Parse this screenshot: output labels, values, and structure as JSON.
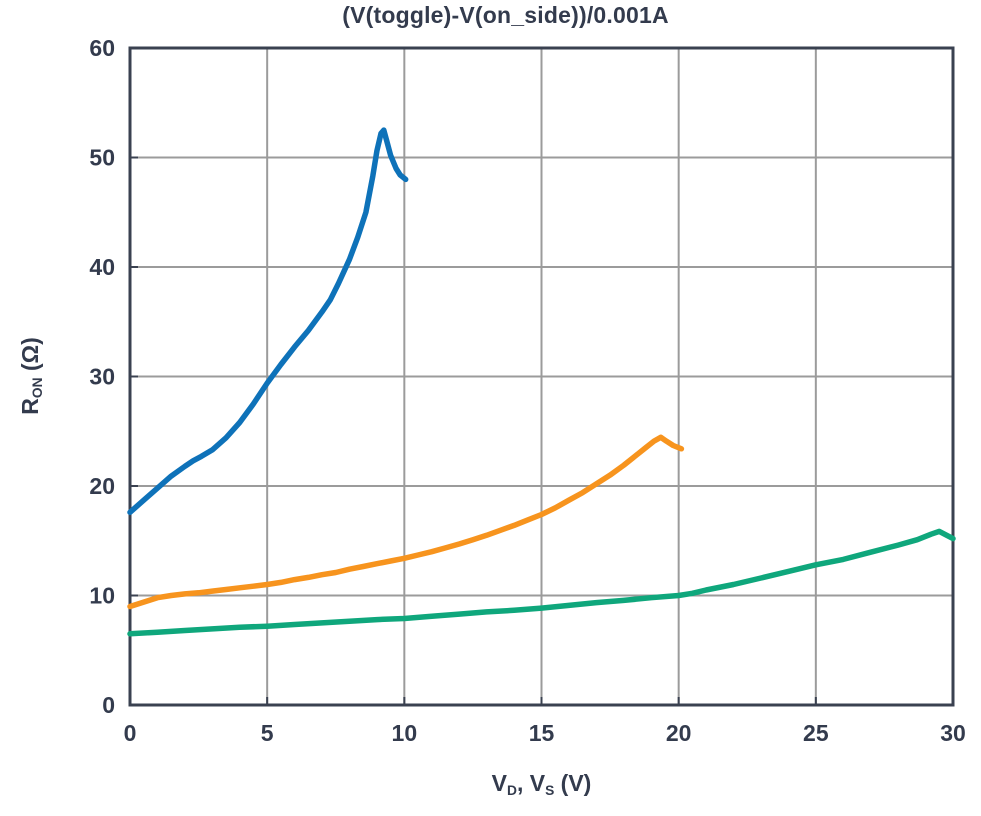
{
  "title": "(V(toggle)-V(on_side))/0.001A",
  "axes": {
    "ylabel_main": "R",
    "ylabel_sub": "ON",
    "ylabel_rest": " (Ω)",
    "xlabel_v1": "V",
    "xlabel_sub1": "D",
    "xlabel_mid": ", V",
    "xlabel_sub2": "S",
    "xlabel_rest": " (V)"
  },
  "chart_data": {
    "type": "line",
    "title": "(V(toggle)-V(on_side))/0.001A",
    "xlabel": "VD, VS (V)",
    "ylabel": "RON (Ω)",
    "xlim": [
      0,
      30
    ],
    "ylim": [
      0,
      60
    ],
    "grid": true,
    "legend_position": "none",
    "x_tick_values": [
      0,
      5,
      10,
      15,
      20,
      25,
      30
    ],
    "x_tick_labels": [
      "0",
      "5",
      "10",
      "15",
      "20",
      "25",
      "30"
    ],
    "y_tick_values": [
      0,
      10,
      20,
      30,
      40,
      50,
      60
    ],
    "y_tick_labels": [
      "0",
      "10",
      "20",
      "30",
      "40",
      "50",
      "60"
    ],
    "x_gridlines": [
      5,
      10,
      15,
      20,
      25
    ],
    "y_gridlines": [
      10,
      20,
      30,
      40,
      50
    ],
    "colors": {
      "frame": "#3A4150",
      "grid": "#9B9B9B",
      "text": "#333B4D"
    },
    "series": [
      {
        "name": "blue-curve",
        "color": "#0E72B9",
        "points": [
          [
            0,
            17.6
          ],
          [
            0.5,
            18.7
          ],
          [
            1,
            19.8
          ],
          [
            1.5,
            20.9
          ],
          [
            2,
            21.8
          ],
          [
            2.3,
            22.3
          ],
          [
            2.6,
            22.7
          ],
          [
            3,
            23.3
          ],
          [
            3.5,
            24.4
          ],
          [
            4,
            25.8
          ],
          [
            4.5,
            27.5
          ],
          [
            5,
            29.4
          ],
          [
            5.5,
            31.1
          ],
          [
            6,
            32.7
          ],
          [
            6.5,
            34.2
          ],
          [
            7,
            35.9
          ],
          [
            7.3,
            37.0
          ],
          [
            7.6,
            38.5
          ],
          [
            8,
            40.7
          ],
          [
            8.3,
            42.7
          ],
          [
            8.6,
            45.0
          ],
          [
            8.85,
            48.3
          ],
          [
            9.0,
            50.6
          ],
          [
            9.15,
            52.2
          ],
          [
            9.25,
            52.5
          ],
          [
            9.35,
            51.6
          ],
          [
            9.5,
            50.2
          ],
          [
            9.7,
            49.0
          ],
          [
            9.85,
            48.4
          ],
          [
            10.05,
            48.0
          ]
        ]
      },
      {
        "name": "orange-curve",
        "color": "#F7941E",
        "points": [
          [
            0,
            9.0
          ],
          [
            0.5,
            9.4
          ],
          [
            1,
            9.8
          ],
          [
            1.5,
            10.0
          ],
          [
            2,
            10.15
          ],
          [
            2.5,
            10.25
          ],
          [
            3,
            10.4
          ],
          [
            3.5,
            10.55
          ],
          [
            4,
            10.7
          ],
          [
            4.5,
            10.85
          ],
          [
            5,
            11.0
          ],
          [
            5.5,
            11.2
          ],
          [
            6,
            11.45
          ],
          [
            6.5,
            11.65
          ],
          [
            7,
            11.9
          ],
          [
            7.5,
            12.1
          ],
          [
            8,
            12.4
          ],
          [
            8.5,
            12.65
          ],
          [
            9,
            12.9
          ],
          [
            9.5,
            13.15
          ],
          [
            10,
            13.4
          ],
          [
            10.5,
            13.7
          ],
          [
            11,
            14.0
          ],
          [
            11.5,
            14.35
          ],
          [
            12,
            14.7
          ],
          [
            12.5,
            15.1
          ],
          [
            13,
            15.5
          ],
          [
            13.5,
            15.95
          ],
          [
            14,
            16.4
          ],
          [
            14.5,
            16.9
          ],
          [
            15,
            17.4
          ],
          [
            15.5,
            18.0
          ],
          [
            16,
            18.7
          ],
          [
            16.5,
            19.4
          ],
          [
            17,
            20.2
          ],
          [
            17.5,
            21.0
          ],
          [
            18,
            21.9
          ],
          [
            18.4,
            22.7
          ],
          [
            18.8,
            23.5
          ],
          [
            19.1,
            24.1
          ],
          [
            19.35,
            24.45
          ],
          [
            19.55,
            24.1
          ],
          [
            19.8,
            23.7
          ],
          [
            20.1,
            23.4
          ]
        ]
      },
      {
        "name": "green-curve",
        "color": "#0FA77C",
        "points": [
          [
            0,
            6.5
          ],
          [
            1,
            6.65
          ],
          [
            2,
            6.8
          ],
          [
            3,
            6.95
          ],
          [
            4,
            7.1
          ],
          [
            5,
            7.2
          ],
          [
            6,
            7.35
          ],
          [
            7,
            7.5
          ],
          [
            8,
            7.65
          ],
          [
            9,
            7.8
          ],
          [
            10,
            7.9
          ],
          [
            11,
            8.1
          ],
          [
            12,
            8.3
          ],
          [
            13,
            8.5
          ],
          [
            14,
            8.65
          ],
          [
            15,
            8.85
          ],
          [
            16,
            9.1
          ],
          [
            17,
            9.35
          ],
          [
            18,
            9.55
          ],
          [
            19,
            9.8
          ],
          [
            20,
            10.0
          ],
          [
            20.5,
            10.2
          ],
          [
            21,
            10.5
          ],
          [
            22,
            11.0
          ],
          [
            23,
            11.6
          ],
          [
            24,
            12.2
          ],
          [
            25,
            12.8
          ],
          [
            26,
            13.3
          ],
          [
            27,
            13.95
          ],
          [
            28,
            14.6
          ],
          [
            28.7,
            15.1
          ],
          [
            29.2,
            15.6
          ],
          [
            29.5,
            15.85
          ],
          [
            30,
            15.2
          ]
        ]
      }
    ]
  }
}
